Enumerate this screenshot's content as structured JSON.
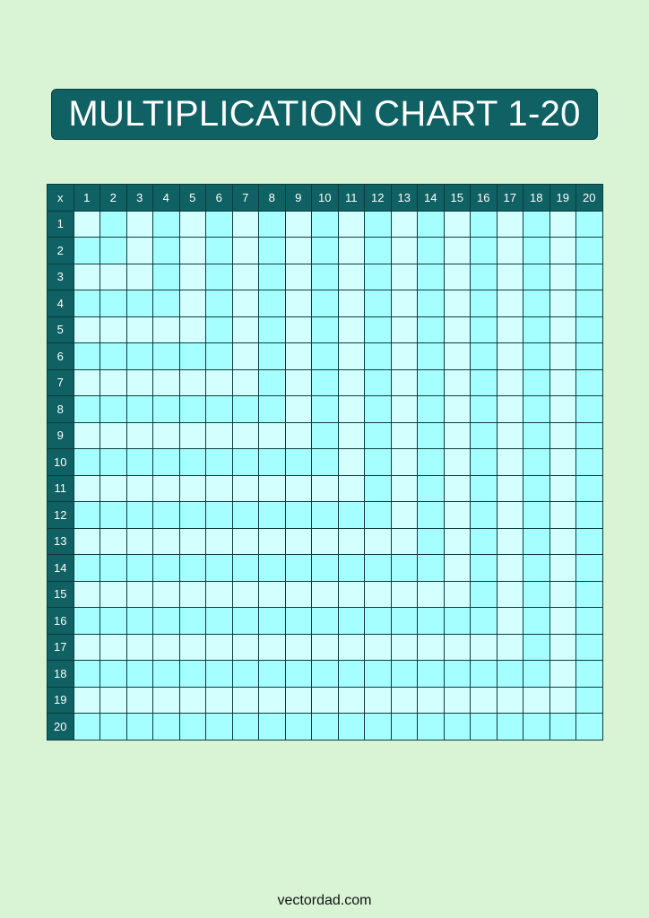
{
  "title": "MULTIPLICATION CHART 1-20",
  "corner_label": "x",
  "size": 20,
  "colors": {
    "background": "#d8f4d5",
    "header": "#0f6163",
    "cell_light": "#d4ffff",
    "cell_cyan": "#a6ffff"
  },
  "footer": "vectordad.com"
}
